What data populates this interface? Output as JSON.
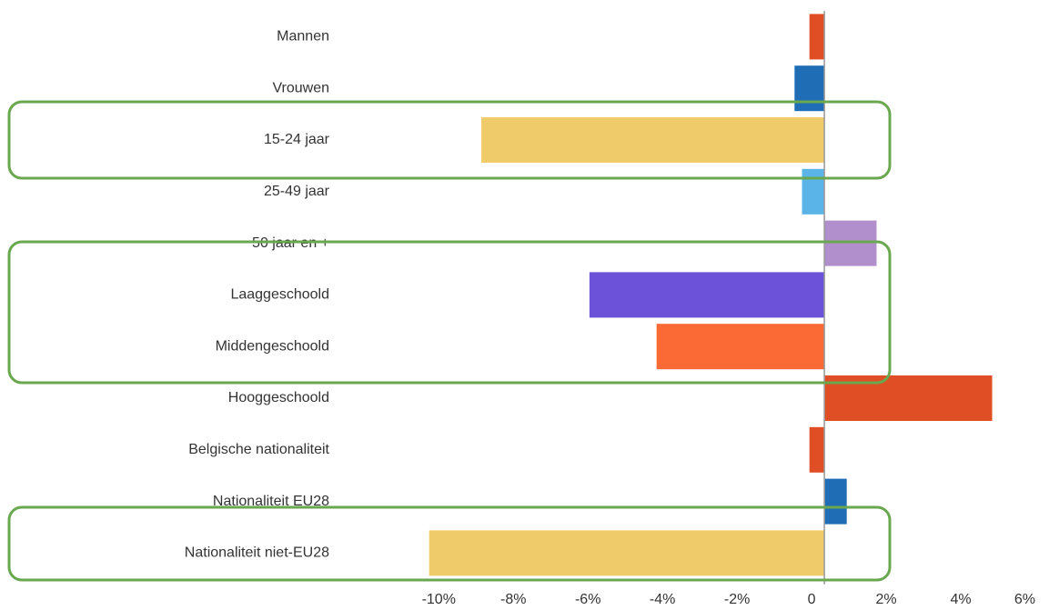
{
  "chart_data": {
    "type": "bar",
    "orientation": "horizontal",
    "categories": [
      "Mannen",
      "Vrouwen",
      "15-24 jaar",
      "25-49 jaar",
      "50 jaar en +",
      "Laaggeschoold",
      "Middengeschoold",
      "Hooggeschoold",
      "Belgische nationaliteit",
      "Nationaliteit EU28",
      "Nationaliteit niet-EU28"
    ],
    "values": [
      -0.4,
      -0.8,
      -9.2,
      -0.6,
      1.4,
      -6.3,
      -4.5,
      4.5,
      -0.4,
      0.6,
      -10.6
    ],
    "colors": [
      "#e04e25",
      "#1f6db5",
      "#f0cb6a",
      "#5bb4e8",
      "#b08fcc",
      "#6b52d9",
      "#fb6a35",
      "#e04e25",
      "#e04e25",
      "#1f6db5",
      "#f0cb6a"
    ],
    "xlim": [
      -12.3,
      6
    ],
    "xticks": [
      {
        "value": -10,
        "label": "-10%"
      },
      {
        "value": -8,
        "label": "-8%"
      },
      {
        "value": -6,
        "label": "-6%"
      },
      {
        "value": -4,
        "label": "-4%"
      },
      {
        "value": -2,
        "label": "-2%"
      },
      0,
      {
        "value": 2,
        "label": "2%"
      },
      {
        "value": 4,
        "label": "4%"
      },
      {
        "value": 6,
        "label": "6%"
      }
    ]
  }
}
